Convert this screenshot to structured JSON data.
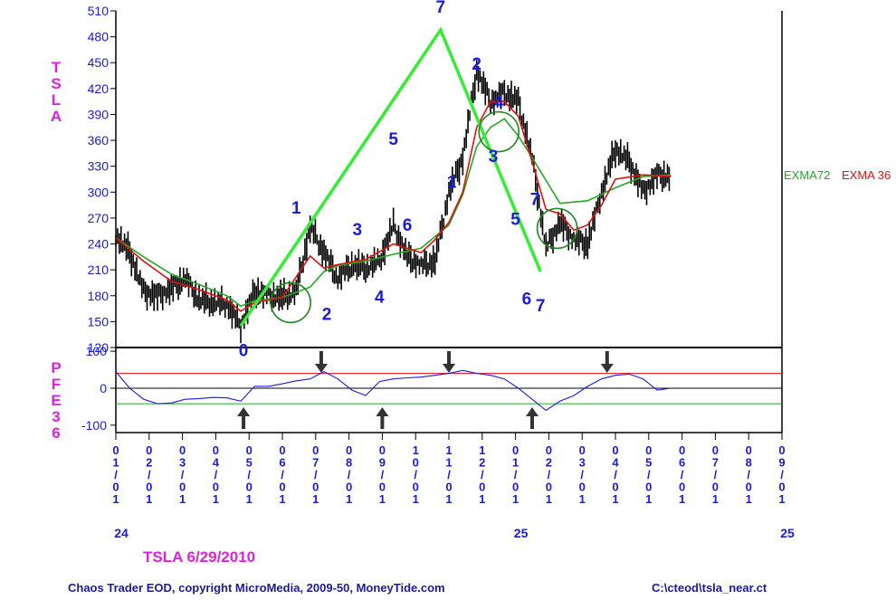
{
  "title": "TSLA  6/29/2010",
  "footer_left": "Chaos Trader EOD, copyright MicroMedia, 2009-50, MoneyTide.com",
  "footer_right": "C:\\cteod\\tsla_near.ct",
  "chart_data": [
    {
      "type": "line",
      "panel": "price",
      "ylabel": "TSLA",
      "ylim": [
        120,
        510
      ],
      "yticks": [
        120,
        150,
        180,
        210,
        240,
        270,
        300,
        330,
        360,
        390,
        420,
        450,
        480,
        510
      ],
      "grid": false,
      "x_index_max": 24,
      "series": [
        {
          "name": "EXMA72",
          "color": "#22aa22",
          "x": [
            0,
            1,
            2,
            3,
            4,
            4.5,
            5,
            6,
            7,
            7.5,
            8,
            9,
            10,
            11,
            12,
            12.5,
            13,
            13.5,
            14,
            14.5,
            15,
            16,
            17,
            18,
            19,
            20
          ],
          "values": [
            247,
            225,
            205,
            193,
            180,
            168,
            174,
            178,
            190,
            208,
            215,
            220,
            228,
            235,
            262,
            297,
            353,
            375,
            385,
            365,
            340,
            287,
            290,
            305,
            318,
            320
          ]
        },
        {
          "name": "EXMA 36",
          "color": "#e01010",
          "x": [
            0,
            1,
            2,
            3,
            4,
            4.5,
            5,
            6,
            6.5,
            7,
            7.5,
            8,
            9,
            10,
            11,
            11.5,
            12,
            12.5,
            13,
            13.5,
            14,
            14.5,
            15,
            15.5,
            16,
            16.5,
            17,
            17.5,
            18,
            19,
            20
          ],
          "values": [
            247,
            220,
            197,
            187,
            175,
            162,
            172,
            178,
            202,
            226,
            212,
            216,
            222,
            240,
            230,
            245,
            265,
            300,
            375,
            405,
            405,
            388,
            335,
            280,
            275,
            256,
            262,
            285,
            315,
            320,
            318
          ]
        }
      ],
      "price_bars": {
        "color": "#000000",
        "x": [
          0,
          0.5,
          1,
          1.5,
          2,
          2.5,
          3,
          3.5,
          4,
          4.5,
          5,
          5.5,
          6,
          6.5,
          7,
          7.5,
          8,
          8.5,
          9,
          9.5,
          10,
          10.5,
          11,
          11.5,
          12,
          12.5,
          13,
          13.5,
          14,
          14.5,
          15,
          15.5,
          16,
          16.5,
          17,
          17.5,
          18,
          18.5,
          19,
          19.5,
          20
        ],
        "values": [
          250,
          230,
          185,
          180,
          188,
          200,
          175,
          172,
          170,
          145,
          185,
          180,
          178,
          185,
          260,
          230,
          200,
          215,
          212,
          220,
          262,
          225,
          215,
          220,
          300,
          340,
          440,
          405,
          415,
          405,
          340,
          235,
          265,
          245,
          240,
          300,
          350,
          335,
          300,
          320,
          318
        ]
      },
      "trendlines": {
        "color": "#33ee33",
        "x": [
          4.5,
          11.7,
          15.3
        ],
        "values": [
          145,
          488,
          208
        ]
      },
      "wave_labels": {
        "color": "#1a1ae0",
        "x": [
          4.6,
          6.5,
          7.6,
          8.7,
          9.5,
          10.0,
          10.5,
          11.7,
          12.1,
          13.0,
          13.6,
          13.8,
          14.4,
          14.8,
          15.1,
          15.3
        ],
        "values": [
          110,
          275,
          152,
          250,
          172,
          355,
          255,
          508,
          305,
          442,
          335,
          398,
          262,
          170,
          285,
          162
        ],
        "labels": [
          "0",
          "1",
          "2",
          "3",
          "4",
          "5",
          "6",
          "7",
          "1",
          "2",
          "3",
          "4",
          "5",
          "6",
          "7",
          "7"
        ]
      },
      "circles": {
        "color": "#228822",
        "x": [
          6.3,
          13.8,
          15.9
        ],
        "values": [
          172,
          370,
          258
        ]
      }
    },
    {
      "type": "line",
      "panel": "oscillator",
      "ylabel": "PFE36",
      "ylim": [
        -120,
        110
      ],
      "yticks": [
        -100,
        0,
        100
      ],
      "reference_lines": [
        {
          "value": 40,
          "color": "#e01010"
        },
        {
          "value": -42,
          "color": "#22aa22"
        },
        {
          "value": 0,
          "color": "#000000"
        }
      ],
      "series": [
        {
          "name": "",
          "color": "#1a1ae0",
          "x": [
            0,
            0.5,
            1,
            1.5,
            2,
            2.5,
            3,
            3.5,
            4,
            4.5,
            5,
            5.5,
            6,
            6.5,
            7,
            7.5,
            8,
            8.5,
            9,
            9.5,
            10,
            10.5,
            11,
            11.5,
            12,
            12.5,
            13,
            13.5,
            14,
            14.5,
            15,
            15.5,
            16,
            16.5,
            17,
            17.5,
            18,
            18.5,
            19,
            19.5,
            20
          ],
          "values": [
            45,
            0,
            -30,
            -42,
            -40,
            -30,
            -28,
            -25,
            -26,
            -35,
            5,
            5,
            12,
            20,
            25,
            45,
            25,
            -5,
            -20,
            18,
            25,
            28,
            30,
            35,
            40,
            48,
            40,
            35,
            25,
            0,
            -30,
            -60,
            -35,
            -20,
            5,
            25,
            35,
            38,
            25,
            -5,
            0
          ]
        }
      ],
      "arrows": [
        {
          "x": 4.6,
          "direction": "up"
        },
        {
          "x": 7.4,
          "direction": "down"
        },
        {
          "x": 9.6,
          "direction": "up"
        },
        {
          "x": 12.0,
          "direction": "down"
        },
        {
          "x": 15.0,
          "direction": "up"
        },
        {
          "x": 17.7,
          "direction": "down"
        }
      ]
    }
  ],
  "x_axis": {
    "tick_labels": [
      "01/01",
      "02/01",
      "03/01",
      "04/01",
      "05/01",
      "06/01",
      "07/01",
      "08/01",
      "09/01",
      "10/01",
      "11/01",
      "12/01",
      "01/01",
      "02/01",
      "03/01",
      "04/01",
      "05/01",
      "06/01",
      "07/01",
      "08/01",
      "09/01"
    ],
    "year_labels": [
      {
        "index": 0,
        "text": "24"
      },
      {
        "index": 12,
        "text": "25"
      },
      {
        "index": 20,
        "text": "25"
      }
    ]
  }
}
